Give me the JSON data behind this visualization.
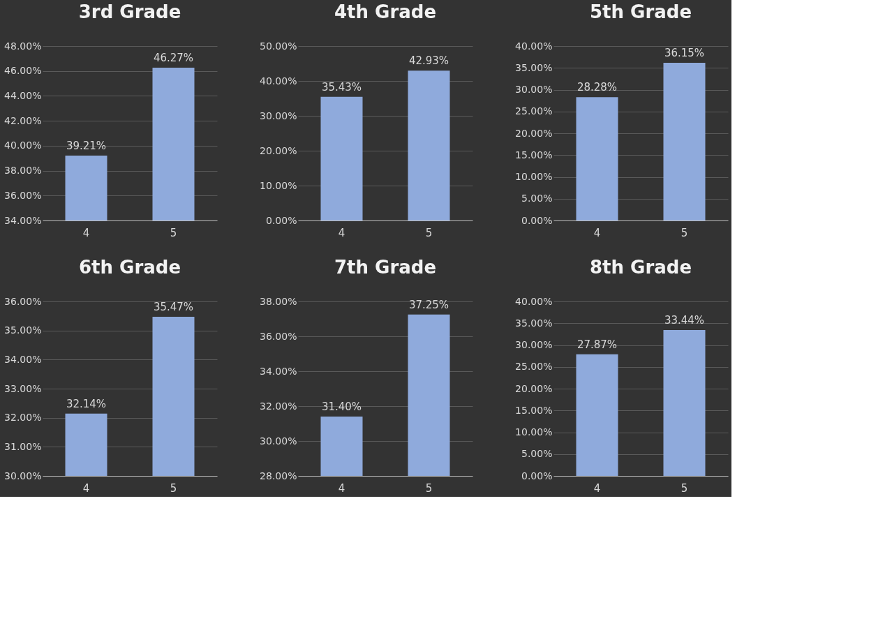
{
  "chart_data": [
    {
      "type": "bar",
      "title": "3rd Grade",
      "categories": [
        "4",
        "5"
      ],
      "values": [
        39.21,
        46.27
      ],
      "value_labels": [
        "39.21%",
        "46.27%"
      ],
      "color": "#8faadc",
      "ylim": [
        34,
        48
      ],
      "yticks": [
        {
          "value": 34,
          "label": "34.00%"
        },
        {
          "value": 36,
          "label": "36.00%"
        },
        {
          "value": 38,
          "label": "38.00%"
        },
        {
          "value": 40,
          "label": "40.00%"
        },
        {
          "value": 42,
          "label": "42.00%"
        },
        {
          "value": 44,
          "label": "44.00%"
        },
        {
          "value": 46,
          "label": "46.00%"
        },
        {
          "value": 48,
          "label": "48.00%"
        }
      ],
      "grid": "y"
    },
    {
      "type": "bar",
      "title": "4th Grade",
      "categories": [
        "4",
        "5"
      ],
      "values": [
        35.43,
        42.93
      ],
      "value_labels": [
        "35.43%",
        "42.93%"
      ],
      "color": "#8faadc",
      "ylim": [
        0,
        50
      ],
      "yticks": [
        {
          "value": 0,
          "label": "0.00%"
        },
        {
          "value": 10,
          "label": "10.00%"
        },
        {
          "value": 20,
          "label": "20.00%"
        },
        {
          "value": 30,
          "label": "30.00%"
        },
        {
          "value": 40,
          "label": "40.00%"
        },
        {
          "value": 50,
          "label": "50.00%"
        }
      ],
      "grid": "y"
    },
    {
      "type": "bar",
      "title": "5th Grade",
      "categories": [
        "4",
        "5"
      ],
      "values": [
        28.28,
        36.15
      ],
      "value_labels": [
        "28.28%",
        "36.15%"
      ],
      "color": "#8faadc",
      "ylim": [
        0,
        40
      ],
      "yticks": [
        {
          "value": 0,
          "label": "0.00%"
        },
        {
          "value": 5,
          "label": "5.00%"
        },
        {
          "value": 10,
          "label": "10.00%"
        },
        {
          "value": 15,
          "label": "15.00%"
        },
        {
          "value": 20,
          "label": "20.00%"
        },
        {
          "value": 25,
          "label": "25.00%"
        },
        {
          "value": 30,
          "label": "30.00%"
        },
        {
          "value": 35,
          "label": "35.00%"
        },
        {
          "value": 40,
          "label": "40.00%"
        }
      ],
      "grid": "y"
    },
    {
      "type": "bar",
      "title": "6th Grade",
      "categories": [
        "4",
        "5"
      ],
      "values": [
        32.14,
        35.47
      ],
      "value_labels": [
        "32.14%",
        "35.47%"
      ],
      "color": "#8faadc",
      "ylim": [
        30,
        36
      ],
      "yticks": [
        {
          "value": 30,
          "label": "30.00%"
        },
        {
          "value": 31,
          "label": "31.00%"
        },
        {
          "value": 32,
          "label": "32.00%"
        },
        {
          "value": 33,
          "label": "33.00%"
        },
        {
          "value": 34,
          "label": "34.00%"
        },
        {
          "value": 35,
          "label": "35.00%"
        },
        {
          "value": 36,
          "label": "36.00%"
        }
      ],
      "grid": "y"
    },
    {
      "type": "bar",
      "title": "7th Grade",
      "categories": [
        "4",
        "5"
      ],
      "values": [
        31.4,
        37.25
      ],
      "value_labels": [
        "31.40%",
        "37.25%"
      ],
      "color": "#8faadc",
      "ylim": [
        28,
        38
      ],
      "yticks": [
        {
          "value": 28,
          "label": "28.00%"
        },
        {
          "value": 30,
          "label": "30.00%"
        },
        {
          "value": 32,
          "label": "32.00%"
        },
        {
          "value": 34,
          "label": "34.00%"
        },
        {
          "value": 36,
          "label": "36.00%"
        },
        {
          "value": 38,
          "label": "38.00%"
        }
      ],
      "grid": "y"
    },
    {
      "type": "bar",
      "title": "8th Grade",
      "categories": [
        "4",
        "5"
      ],
      "values": [
        27.87,
        33.44
      ],
      "value_labels": [
        "27.87%",
        "33.44%"
      ],
      "color": "#8faadc",
      "ylim": [
        0,
        40
      ],
      "yticks": [
        {
          "value": 0,
          "label": "0.00%"
        },
        {
          "value": 5,
          "label": "5.00%"
        },
        {
          "value": 10,
          "label": "10.00%"
        },
        {
          "value": 15,
          "label": "15.00%"
        },
        {
          "value": 20,
          "label": "20.00%"
        },
        {
          "value": 25,
          "label": "25.00%"
        },
        {
          "value": 30,
          "label": "30.00%"
        },
        {
          "value": 35,
          "label": "35.00%"
        },
        {
          "value": 40,
          "label": "40.00%"
        }
      ],
      "grid": "y"
    }
  ]
}
